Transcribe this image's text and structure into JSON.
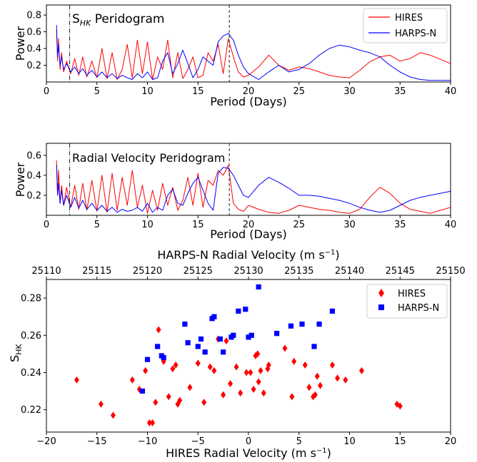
{
  "chart_data": [
    {
      "type": "line",
      "title": "S_HK Peridogram",
      "title_main": "S",
      "title_sub": "HK",
      "title_rest": " Peridogram",
      "xlabel": "Period (Days)",
      "ylabel": "Power",
      "xlim": [
        0,
        40
      ],
      "ylim": [
        0,
        0.92
      ],
      "xticks": [
        0,
        5,
        10,
        15,
        20,
        25,
        30,
        35,
        40
      ],
      "yticks": [
        0.2,
        0.4,
        0.6,
        0.8
      ],
      "legend_position": "top-right",
      "vlines": [
        {
          "x": 2.3,
          "style": "dashdot"
        },
        {
          "x": 18.1,
          "style": "dashed"
        }
      ],
      "series": [
        {
          "name": "HIRES",
          "color": "#ff0000",
          "x": [
            1.0,
            1.1,
            1.2,
            1.35,
            1.5,
            1.7,
            2.0,
            2.4,
            2.8,
            3.2,
            3.6,
            4.0,
            4.5,
            5.0,
            5.5,
            6.0,
            6.5,
            7.0,
            7.5,
            8.0,
            8.5,
            9.0,
            9.5,
            10.0,
            10.5,
            11.0,
            11.5,
            12.0,
            12.5,
            13.0,
            13.5,
            14.0,
            14.5,
            15.0,
            15.5,
            16.0,
            16.5,
            17.0,
            17.5,
            18.0,
            18.5,
            19.0,
            19.5,
            20.0,
            21.0,
            22.0,
            23.0,
            24.0,
            25.0,
            26.0,
            27.0,
            28.0,
            29.0,
            30.0,
            31.0,
            32.0,
            33.0,
            34.0,
            35.0,
            36.0,
            37.0,
            38.0,
            39.0,
            40.0
          ],
          "values": [
            0.62,
            0.25,
            0.52,
            0.15,
            0.35,
            0.12,
            0.25,
            0.1,
            0.28,
            0.08,
            0.3,
            0.06,
            0.25,
            0.05,
            0.4,
            0.04,
            0.35,
            0.03,
            0.15,
            0.45,
            0.05,
            0.5,
            0.1,
            0.48,
            0.03,
            0.3,
            0.15,
            0.5,
            0.05,
            0.35,
            0.04,
            0.15,
            0.3,
            0.05,
            0.08,
            0.35,
            0.25,
            0.45,
            0.1,
            0.52,
            0.3,
            0.12,
            0.06,
            0.08,
            0.18,
            0.32,
            0.2,
            0.14,
            0.18,
            0.16,
            0.12,
            0.08,
            0.06,
            0.05,
            0.14,
            0.24,
            0.3,
            0.32,
            0.25,
            0.28,
            0.35,
            0.32,
            0.27,
            0.22
          ]
        },
        {
          "name": "HARPS-N",
          "color": "#0000ff",
          "x": [
            1.0,
            1.1,
            1.2,
            1.35,
            1.5,
            1.7,
            2.0,
            2.4,
            2.8,
            3.2,
            3.6,
            4.0,
            4.5,
            5.0,
            5.5,
            6.0,
            6.5,
            7.0,
            7.5,
            8.0,
            8.5,
            9.0,
            9.5,
            10.0,
            10.5,
            11.0,
            11.5,
            12.0,
            12.5,
            13.0,
            13.5,
            14.0,
            14.5,
            15.0,
            15.5,
            16.0,
            16.5,
            17.0,
            17.5,
            18.0,
            18.5,
            19.0,
            19.5,
            20.0,
            21.0,
            22.0,
            23.0,
            24.0,
            25.0,
            26.0,
            27.0,
            28.0,
            29.0,
            30.0,
            31.0,
            32.0,
            33.0,
            34.0,
            35.0,
            36.0,
            37.0,
            38.0,
            39.0,
            40.0
          ],
          "values": [
            0.68,
            0.3,
            0.45,
            0.2,
            0.3,
            0.15,
            0.22,
            0.12,
            0.18,
            0.1,
            0.16,
            0.08,
            0.14,
            0.06,
            0.12,
            0.05,
            0.1,
            0.04,
            0.08,
            0.05,
            0.03,
            0.1,
            0.05,
            0.12,
            0.03,
            0.05,
            0.25,
            0.35,
            0.1,
            0.22,
            0.38,
            0.22,
            0.05,
            0.15,
            0.3,
            0.25,
            0.2,
            0.48,
            0.55,
            0.58,
            0.5,
            0.32,
            0.18,
            0.1,
            0.03,
            0.12,
            0.2,
            0.12,
            0.15,
            0.22,
            0.32,
            0.4,
            0.44,
            0.42,
            0.38,
            0.35,
            0.3,
            0.2,
            0.12,
            0.06,
            0.03,
            0.02,
            0.02,
            0.02
          ]
        }
      ]
    },
    {
      "type": "line",
      "title": "Radial Velocity Peridogram",
      "xlabel": "Period (Days)",
      "ylabel": "Power",
      "xlim": [
        0,
        40
      ],
      "ylim": [
        0,
        0.72
      ],
      "xticks": [
        0,
        5,
        10,
        15,
        20,
        25,
        30,
        35,
        40
      ],
      "yticks": [
        0.2,
        0.4,
        0.6
      ],
      "vlines": [
        {
          "x": 2.3,
          "style": "dashdot"
        },
        {
          "x": 18.1,
          "style": "dashed"
        }
      ],
      "series": [
        {
          "name": "HIRES",
          "color": "#ff0000",
          "x": [
            1.0,
            1.1,
            1.2,
            1.35,
            1.5,
            1.7,
            2.0,
            2.4,
            2.8,
            3.2,
            3.6,
            4.0,
            4.5,
            5.0,
            5.5,
            6.0,
            6.5,
            7.0,
            7.5,
            8.0,
            8.5,
            9.0,
            9.5,
            10.0,
            10.5,
            11.0,
            11.5,
            12.0,
            12.5,
            13.0,
            13.5,
            14.0,
            14.5,
            15.0,
            15.5,
            16.0,
            16.5,
            17.0,
            17.5,
            18.0,
            18.5,
            19.0,
            19.5,
            20.0,
            21.0,
            22.0,
            23.0,
            24.0,
            25.0,
            26.0,
            27.0,
            28.0,
            29.0,
            30.0,
            31.0,
            32.0,
            33.0,
            34.0,
            35.0,
            36.0,
            37.0,
            38.0,
            39.0,
            40.0
          ],
          "values": [
            0.55,
            0.2,
            0.45,
            0.12,
            0.3,
            0.1,
            0.28,
            0.08,
            0.3,
            0.06,
            0.32,
            0.05,
            0.35,
            0.04,
            0.4,
            0.03,
            0.42,
            0.05,
            0.38,
            0.1,
            0.45,
            0.08,
            0.3,
            0.02,
            0.25,
            0.05,
            0.32,
            0.1,
            0.28,
            0.05,
            0.15,
            0.38,
            0.1,
            0.42,
            0.08,
            0.35,
            0.3,
            0.45,
            0.4,
            0.5,
            0.12,
            0.06,
            0.04,
            0.1,
            0.06,
            0.03,
            0.02,
            0.05,
            0.1,
            0.08,
            0.06,
            0.05,
            0.03,
            0.02,
            0.06,
            0.18,
            0.28,
            0.22,
            0.12,
            0.06,
            0.04,
            0.02,
            0.05,
            0.08
          ]
        },
        {
          "name": "HARPS-N",
          "color": "#0000ff",
          "x": [
            1.0,
            1.1,
            1.2,
            1.35,
            1.5,
            1.7,
            2.0,
            2.4,
            2.8,
            3.2,
            3.6,
            4.0,
            4.5,
            5.0,
            5.5,
            6.0,
            6.5,
            7.0,
            7.5,
            8.0,
            8.5,
            9.0,
            9.5,
            10.0,
            10.5,
            11.0,
            11.5,
            12.0,
            12.5,
            13.0,
            13.5,
            14.0,
            14.5,
            15.0,
            15.5,
            16.0,
            16.5,
            17.0,
            17.5,
            18.0,
            18.5,
            19.0,
            19.5,
            20.0,
            21.0,
            22.0,
            23.0,
            24.0,
            25.0,
            26.0,
            27.0,
            28.0,
            29.0,
            30.0,
            31.0,
            32.0,
            33.0,
            34.0,
            35.0,
            36.0,
            37.0,
            38.0,
            39.0,
            40.0
          ],
          "values": [
            0.5,
            0.2,
            0.32,
            0.12,
            0.25,
            0.1,
            0.2,
            0.08,
            0.18,
            0.07,
            0.15,
            0.06,
            0.12,
            0.05,
            0.1,
            0.04,
            0.08,
            0.03,
            0.06,
            0.04,
            0.05,
            0.08,
            0.04,
            0.12,
            0.03,
            0.08,
            0.05,
            0.2,
            0.26,
            0.12,
            0.1,
            0.22,
            0.32,
            0.38,
            0.25,
            0.12,
            0.05,
            0.42,
            0.48,
            0.47,
            0.4,
            0.3,
            0.2,
            0.18,
            0.3,
            0.38,
            0.33,
            0.27,
            0.2,
            0.2,
            0.19,
            0.17,
            0.15,
            0.12,
            0.08,
            0.05,
            0.03,
            0.05,
            0.1,
            0.15,
            0.18,
            0.2,
            0.22,
            0.24
          ]
        }
      ]
    },
    {
      "type": "scatter",
      "title": "",
      "xlabel": "HIRES Radial Velocity (m s",
      "xlabel_sup": "−1",
      "xlabel_end": ")",
      "top_xlabel": "HARPS-N Radial Velocity (m s",
      "top_xlabel_sup": "−1",
      "top_xlabel_end": ")",
      "ylabel_main": "S",
      "ylabel_sub": "HK",
      "xlim": [
        -20,
        20
      ],
      "top_xlim": [
        25110,
        25150
      ],
      "ylim": [
        0.208,
        0.29
      ],
      "xticks": [
        -20,
        -15,
        -10,
        -5,
        0,
        5,
        10,
        15,
        20
      ],
      "xtick_labels": [
        "−20",
        "−15",
        "−10",
        "−5",
        "0",
        "5",
        "10",
        "15",
        "20"
      ],
      "top_xticks": [
        25110,
        25115,
        25120,
        25125,
        25130,
        25135,
        25140,
        25145,
        25150
      ],
      "yticks": [
        0.22,
        0.24,
        0.26,
        0.28
      ],
      "legend_position": "top-right",
      "series": [
        {
          "name": "HIRES",
          "color": "#ff0000",
          "marker": "diamond",
          "x": [
            -17.0,
            -14.6,
            -13.4,
            -11.5,
            -10.8,
            -10.2,
            -9.8,
            -9.5,
            -9.2,
            -8.9,
            -8.4,
            -7.9,
            -7.5,
            -7.2,
            -7.0,
            -6.8,
            -5.8,
            -5.0,
            -4.4,
            -3.8,
            -3.4,
            -3.0,
            -2.5,
            -2.2,
            -1.8,
            -1.2,
            -0.8,
            -0.2,
            0.2,
            0.5,
            0.7,
            0.9,
            1.0,
            1.2,
            1.5,
            1.9,
            2.0,
            3.6,
            4.3,
            4.5,
            5.6,
            6.0,
            6.4,
            6.6,
            6.8,
            7.1,
            8.3,
            8.8,
            9.6,
            11.2,
            14.7,
            15.0
          ],
          "values": [
            0.236,
            0.223,
            0.217,
            0.236,
            0.231,
            0.241,
            0.213,
            0.213,
            0.224,
            0.263,
            0.246,
            0.227,
            0.242,
            0.244,
            0.223,
            0.225,
            0.232,
            0.245,
            0.224,
            0.243,
            0.241,
            0.258,
            0.228,
            0.257,
            0.234,
            0.243,
            0.229,
            0.24,
            0.24,
            0.231,
            0.249,
            0.25,
            0.235,
            0.241,
            0.229,
            0.242,
            0.244,
            0.253,
            0.227,
            0.246,
            0.244,
            0.232,
            0.227,
            0.228,
            0.238,
            0.233,
            0.244,
            0.237,
            0.236,
            0.241,
            0.223,
            0.222
          ]
        },
        {
          "name": "HARPS-N",
          "color": "#0000ff",
          "marker": "square",
          "x": [
            25119.5,
            25120.0,
            25121.0,
            25121.4,
            25121.6,
            25123.7,
            25124.0,
            25125.0,
            25125.3,
            25125.7,
            25126.4,
            25126.6,
            25127.2,
            25127.5,
            25128.3,
            25128.5,
            25129.0,
            25129.7,
            25130.0,
            25130.3,
            25131.0,
            25132.8,
            25134.2,
            25135.3,
            25136.5,
            25137.0,
            25138.3
          ],
          "values": [
            0.23,
            0.247,
            0.254,
            0.249,
            0.248,
            0.266,
            0.256,
            0.254,
            0.258,
            0.251,
            0.269,
            0.27,
            0.258,
            0.251,
            0.259,
            0.26,
            0.273,
            0.274,
            0.259,
            0.26,
            0.286,
            0.261,
            0.265,
            0.266,
            0.254,
            0.266,
            0.273
          ]
        }
      ]
    }
  ]
}
